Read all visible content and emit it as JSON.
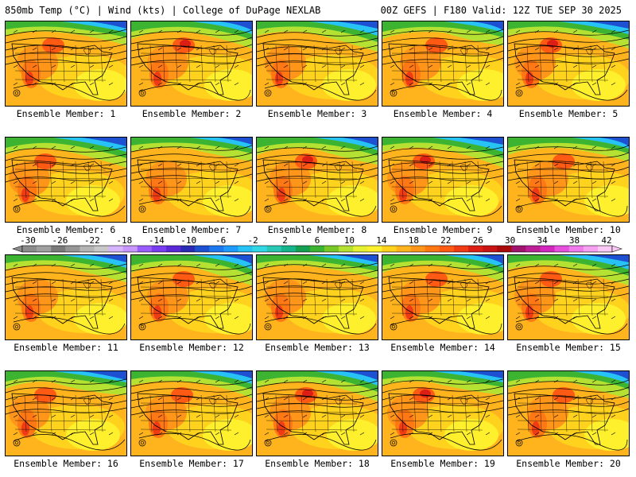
{
  "header": {
    "left_title": "850mb Temp (°C) | Wind (kts) | College of DuPage NEXLAB",
    "right_title": "00Z GEFS | F180 Valid: 12Z TUE SEP 30 2025"
  },
  "panels": [
    {
      "label": "Ensemble Member: 1"
    },
    {
      "label": "Ensemble Member: 2"
    },
    {
      "label": "Ensemble Member: 3"
    },
    {
      "label": "Ensemble Member: 4"
    },
    {
      "label": "Ensemble Member: 5"
    },
    {
      "label": "Ensemble Member: 6"
    },
    {
      "label": "Ensemble Member: 7"
    },
    {
      "label": "Ensemble Member: 8"
    },
    {
      "label": "Ensemble Member: 9"
    },
    {
      "label": "Ensemble Member: 10"
    },
    {
      "label": "Ensemble Member: 11"
    },
    {
      "label": "Ensemble Member: 12"
    },
    {
      "label": "Ensemble Member: 13"
    },
    {
      "label": "Ensemble Member: 14"
    },
    {
      "label": "Ensemble Member: 15"
    },
    {
      "label": "Ensemble Member: 16"
    },
    {
      "label": "Ensemble Member: 17"
    },
    {
      "label": "Ensemble Member: 18"
    },
    {
      "label": "Ensemble Member: 19"
    },
    {
      "label": "Ensemble Member: 20"
    }
  ],
  "colorbar": {
    "tick_labels": [
      "-30",
      "-26",
      "-22",
      "-18",
      "-14",
      "-10",
      "-6",
      "-2",
      "2",
      "6",
      "10",
      "14",
      "18",
      "22",
      "26",
      "30",
      "34",
      "38",
      "42"
    ],
    "colors": [
      "#8c8c8c",
      "#a0a0a0",
      "#7a7a7a",
      "#969696",
      "#b4b4b4",
      "#c8c8c8",
      "#d7b4ff",
      "#c896ff",
      "#9b5cff",
      "#7a3cf0",
      "#5a28d7",
      "#2a2ab4",
      "#1e50d2",
      "#1e78f0",
      "#1e9bff",
      "#28c3f5",
      "#32d7e6",
      "#28c8b4",
      "#14b48c",
      "#14a050",
      "#3cb432",
      "#78c828",
      "#b4e132",
      "#e6f032",
      "#fff02d",
      "#ffd21e",
      "#ffb41e",
      "#ff9619",
      "#ff7814",
      "#ff5a14",
      "#f03c14",
      "#dc1e14",
      "#c81414",
      "#aa0a0a",
      "#a0146e",
      "#be1e96",
      "#d228be",
      "#e650dc",
      "#f07aeb",
      "#f5a0f0",
      "#fac8f5"
    ],
    "units": "°C"
  }
}
